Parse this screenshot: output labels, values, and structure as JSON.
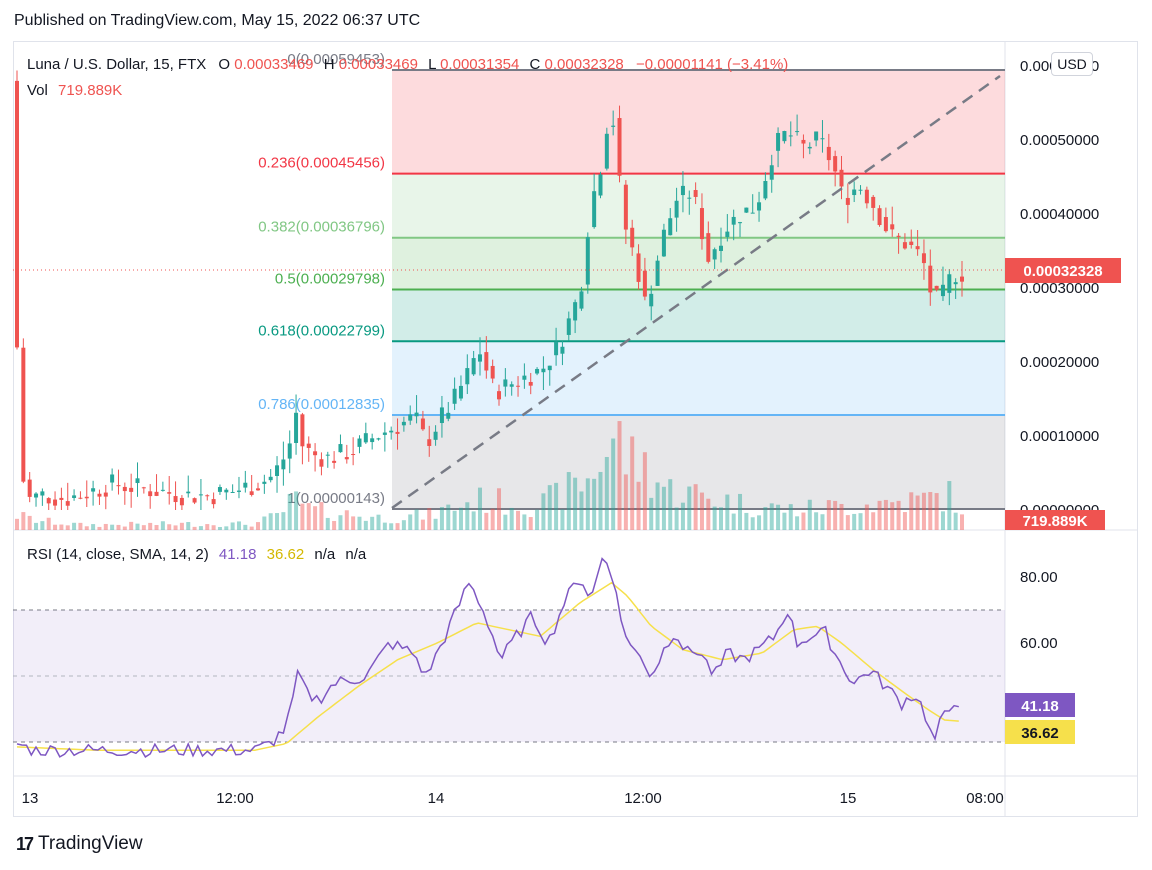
{
  "header": {
    "published": "Published on TradingView.com, May 15, 2022 06:37 UTC"
  },
  "footer": {
    "brand": "TradingView"
  },
  "currency_button": "USD",
  "legend": {
    "symbol": "Luna / U.S. Dollar, 15, FTX",
    "o_label": "O",
    "o_value": "0.00033469",
    "h_label": "H",
    "h_value": "0.00033469",
    "l_label": "L",
    "l_value": "0.00031354",
    "c_label": "C",
    "c_value": "0.00032328",
    "change": "−0.00001141 (−3.41%)",
    "vol_label": "Vol",
    "vol_value": "719.889K",
    "rsi_label": "RSI (14, close, SMA, 14, 2)",
    "rsi_value": "41.18",
    "rsi_sma_value": "36.62",
    "rsi_na1": "n/a",
    "rsi_na2": "n/a"
  },
  "colors": {
    "up": "#26a69a",
    "down": "#ef5350",
    "rsi": "#7e57c2",
    "rsi_ma": "#f6e04b",
    "price_tag": "#ef5350"
  },
  "chart_data": [
    {
      "type": "candlestick",
      "title": "Luna / U.S. Dollar, 15, FTX",
      "ylim": [
        0,
        0.0006
      ],
      "y_ticks": [
        "0.00060000",
        "0.00050000",
        "0.00040000",
        "0.00030000",
        "0.00020000",
        "0.00010000",
        "0.00000000"
      ],
      "x_ticks": [
        "13",
        "12:00",
        "14",
        "12:00",
        "15",
        "08:00"
      ],
      "last_price": "0.00032328",
      "last_volume": "719.889K",
      "fib_levels": [
        {
          "ratio": 0,
          "label": "0(0.00059453)",
          "value": 0.00059453,
          "color": "#787b86"
        },
        {
          "ratio": 0.236,
          "label": "0.236(0.00045456)",
          "value": 0.00045456,
          "color": "#f23645"
        },
        {
          "ratio": 0.382,
          "label": "0.382(0.00036796)",
          "value": 0.00036796,
          "color": "#81c784"
        },
        {
          "ratio": 0.5,
          "label": "0.5(0.00029798)",
          "value": 0.00029798,
          "color": "#4caf50"
        },
        {
          "ratio": 0.618,
          "label": "0.618(0.00022799)",
          "value": 0.00022799,
          "color": "#089981"
        },
        {
          "ratio": 0.786,
          "label": "0.786(0.00012835)",
          "value": 0.00012835,
          "color": "#64b5f6"
        },
        {
          "ratio": 1,
          "label": "1(0.00000143)",
          "value": 1.43e-06,
          "color": "#787b86"
        }
      ],
      "price_path": [
        [
          0,
          0.00058
        ],
        [
          2,
          0.00048
        ],
        [
          4,
          0.00022
        ],
        [
          6,
          0.0001
        ],
        [
          8,
          4e-05
        ],
        [
          12,
          1.5e-05
        ],
        [
          20,
          2e-05
        ],
        [
          35,
          1.5e-05
        ],
        [
          50,
          2.5e-05
        ],
        [
          65,
          3.5e-05
        ],
        [
          80,
          3e-05
        ],
        [
          95,
          2.5e-05
        ],
        [
          110,
          2e-05
        ],
        [
          125,
          2e-05
        ],
        [
          140,
          2.5e-05
        ],
        [
          155,
          3.5e-05
        ],
        [
          165,
          4.5e-05
        ],
        [
          175,
          8e-05
        ],
        [
          180,
          0.00013
        ],
        [
          183,
          9e-05
        ],
        [
          190,
          7.5e-05
        ],
        [
          200,
          7e-05
        ],
        [
          215,
          8e-05
        ],
        [
          230,
          0.0001
        ],
        [
          245,
          0.000115
        ],
        [
          255,
          0.000125
        ],
        [
          262,
          9e-05
        ],
        [
          270,
          0.00012
        ],
        [
          280,
          0.00015
        ],
        [
          290,
          0.00019
        ],
        [
          295,
          0.00022
        ],
        [
          300,
          0.00019
        ],
        [
          305,
          0.00016
        ],
        [
          315,
          0.00017
        ],
        [
          325,
          0.00018
        ],
        [
          335,
          0.00019
        ],
        [
          345,
          0.00022
        ],
        [
          355,
          0.00027
        ],
        [
          360,
          0.00031
        ],
        [
          365,
          0.0004
        ],
        [
          370,
          0.00045
        ],
        [
          375,
          0.00049
        ],
        [
          378,
          0.00058
        ],
        [
          382,
          0.00047
        ],
        [
          388,
          0.00038
        ],
        [
          395,
          0.00033
        ],
        [
          400,
          0.00028
        ],
        [
          405,
          0.00031
        ],
        [
          410,
          0.00036
        ],
        [
          420,
          0.00042
        ],
        [
          430,
          0.00043
        ],
        [
          440,
          0.00034
        ],
        [
          450,
          0.00038
        ],
        [
          460,
          0.0004
        ],
        [
          470,
          0.00041
        ],
        [
          480,
          0.00048
        ],
        [
          485,
          0.0005
        ],
        [
          490,
          0.00051
        ],
        [
          500,
          0.00049
        ],
        [
          510,
          0.0005
        ],
        [
          518,
          0.00047
        ],
        [
          525,
          0.00042
        ],
        [
          535,
          0.00044
        ],
        [
          545,
          0.00041
        ],
        [
          555,
          0.00037
        ],
        [
          565,
          0.00036
        ],
        [
          575,
          0.00034
        ],
        [
          582,
          0.00028
        ],
        [
          588,
          0.00029
        ],
        [
          592,
          0.00031
        ],
        [
          596,
          0.00032
        ]
      ],
      "volume_path": [
        [
          0,
          0.15
        ],
        [
          10,
          0.1
        ],
        [
          40,
          0.05
        ],
        [
          100,
          0.06
        ],
        [
          150,
          0.06
        ],
        [
          165,
          0.15
        ],
        [
          175,
          0.3
        ],
        [
          185,
          0.2
        ],
        [
          230,
          0.12
        ],
        [
          260,
          0.15
        ],
        [
          290,
          0.3
        ],
        [
          330,
          0.25
        ],
        [
          360,
          0.5
        ],
        [
          378,
          0.95
        ],
        [
          385,
          0.7
        ],
        [
          395,
          0.65
        ],
        [
          410,
          0.4
        ],
        [
          430,
          0.35
        ],
        [
          460,
          0.25
        ],
        [
          490,
          0.2
        ],
        [
          530,
          0.25
        ],
        [
          570,
          0.3
        ],
        [
          590,
          0.35
        ],
        [
          596,
          0.12
        ]
      ]
    },
    {
      "type": "line",
      "title": "RSI (14, close, SMA, 14, 2)",
      "ylim": [
        20,
        90
      ],
      "y_ticks": [
        "80.00",
        "60.00"
      ],
      "bands": [
        70,
        50,
        30
      ],
      "last_rsi": "41.18",
      "last_rsi_ma": "36.62",
      "series": [
        {
          "values_path": [
            [
              0,
              30
            ],
            [
              10,
              28
            ],
            [
              40,
              28
            ],
            [
              100,
              28
            ],
            [
              150,
              28
            ],
            [
              160,
              30
            ],
            [
              170,
              35
            ],
            [
              178,
              52
            ],
            [
              182,
              45
            ],
            [
              190,
              43
            ],
            [
              200,
              48
            ],
            [
              220,
              50
            ],
            [
              235,
              60
            ],
            [
              250,
              57
            ],
            [
              258,
              50
            ],
            [
              270,
              62
            ],
            [
              285,
              78
            ],
            [
              292,
              72
            ],
            [
              298,
              65
            ],
            [
              305,
              55
            ],
            [
              315,
              62
            ],
            [
              325,
              68
            ],
            [
              335,
              60
            ],
            [
              345,
              72
            ],
            [
              355,
              80
            ],
            [
              362,
              73
            ],
            [
              370,
              87
            ],
            [
              376,
              80
            ],
            [
              380,
              68
            ],
            [
              388,
              58
            ],
            [
              395,
              55
            ],
            [
              400,
              50
            ],
            [
              408,
              58
            ],
            [
              415,
              64
            ],
            [
              422,
              57
            ],
            [
              430,
              58
            ],
            [
              440,
              50
            ],
            [
              448,
              57
            ],
            [
              458,
              55
            ],
            [
              468,
              58
            ],
            [
              478,
              62
            ],
            [
              486,
              70
            ],
            [
              492,
              60
            ],
            [
              500,
              62
            ],
            [
              510,
              63
            ],
            [
              518,
              55
            ],
            [
              528,
              48
            ],
            [
              538,
              52
            ],
            [
              548,
              47
            ],
            [
              558,
              42
            ],
            [
              566,
              45
            ],
            [
              572,
              40
            ],
            [
              578,
              30
            ],
            [
              583,
              37
            ],
            [
              588,
              40
            ],
            [
              592,
              44
            ],
            [
              596,
              41.18
            ]
          ]
        },
        {
          "values_path": [
            [
              0,
              29
            ],
            [
              50,
              28
            ],
            [
              150,
              28
            ],
            [
              170,
              30
            ],
            [
              190,
              38
            ],
            [
              215,
              47
            ],
            [
              240,
              55
            ],
            [
              265,
              60
            ],
            [
              290,
              66
            ],
            [
              310,
              64
            ],
            [
              330,
              62
            ],
            [
              355,
              72
            ],
            [
              375,
              78
            ],
            [
              385,
              74
            ],
            [
              400,
              65
            ],
            [
              420,
              58
            ],
            [
              445,
              55
            ],
            [
              470,
              57
            ],
            [
              490,
              64
            ],
            [
              505,
              65
            ],
            [
              520,
              60
            ],
            [
              540,
              52
            ],
            [
              560,
              45
            ],
            [
              575,
              40
            ],
            [
              585,
              37
            ],
            [
              596,
              36.62
            ]
          ]
        }
      ]
    }
  ]
}
